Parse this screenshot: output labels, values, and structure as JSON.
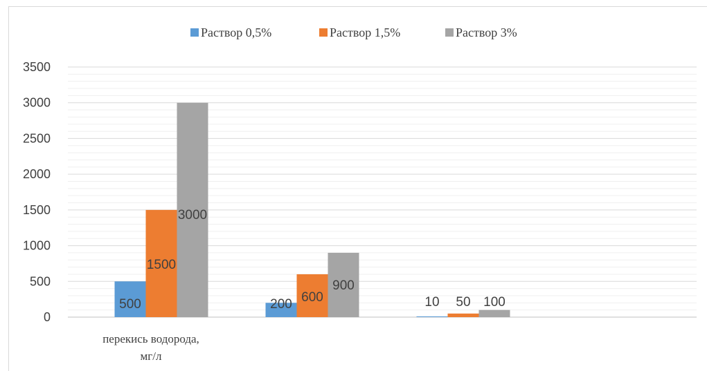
{
  "chart_data": {
    "type": "bar",
    "categories": [
      "перекись водорода, мг/л",
      "",
      ""
    ],
    "series": [
      {
        "name": "Раствор 0,5%",
        "color": "#5b9bd5",
        "values": [
          500,
          200,
          10
        ]
      },
      {
        "name": "Раствор 1,5%",
        "color": "#ed7d31",
        "values": [
          1500,
          600,
          50
        ]
      },
      {
        "name": "Раствор 3%",
        "color": "#a5a5a5",
        "values": [
          3000,
          900,
          100
        ]
      }
    ],
    "data_labels": [
      [
        "500",
        "200",
        "10"
      ],
      [
        "1500",
        "600",
        "50"
      ],
      [
        "3000",
        "900",
        "100"
      ]
    ],
    "yticks": [
      "0",
      "500",
      "1000",
      "1500",
      "2000",
      "2500",
      "3000",
      "3500"
    ],
    "ylim": [
      0,
      3500
    ],
    "grid": true,
    "legend_position": "top",
    "category_label_lines": [
      "перекись водорода,",
      "мг/л"
    ]
  }
}
